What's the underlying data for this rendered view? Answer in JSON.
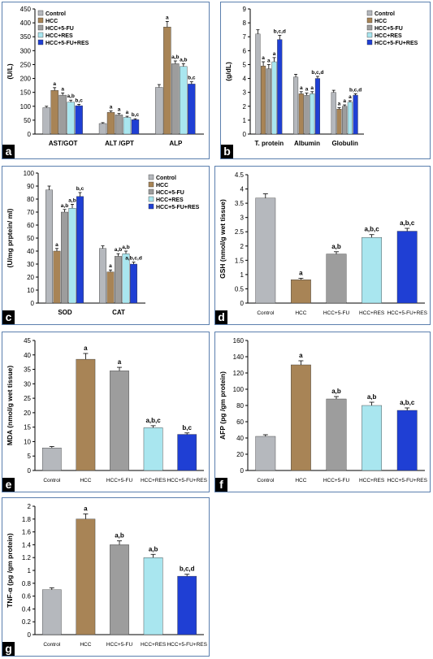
{
  "colors": {
    "Control": "#b5b8bd",
    "HCC": "#a88456",
    "HCC+5-FU": "#9d9d9d",
    "HCC+RES": "#a9e6ef",
    "HCC+5-FU+RES": "#1f3fd4",
    "axis": "#000000",
    "panel_border": "#5b7fae"
  },
  "chart_data": [
    {
      "panel": "a",
      "type": "bar",
      "ylabel": "(U/L)",
      "ylim": [
        0,
        450
      ],
      "yticks": [
        0,
        50,
        100,
        150,
        200,
        250,
        300,
        350,
        400,
        450
      ],
      "legend": "top-left",
      "legend_labels": [
        "Control",
        "HCC",
        "HCC+5-FU",
        "HCC+RES",
        "HCC+5-FU+RES"
      ],
      "categories": [
        "AST/GOT",
        "ALT /GPT",
        "ALP"
      ],
      "series": [
        {
          "name": "Control",
          "values": [
            95,
            38,
            168
          ],
          "errors": [
            5,
            3,
            10
          ],
          "labels": [
            "",
            "",
            ""
          ]
        },
        {
          "name": "HCC",
          "values": [
            157,
            78,
            385
          ],
          "errors": [
            10,
            5,
            20
          ],
          "labels": [
            "a",
            "a",
            "a"
          ]
        },
        {
          "name": "HCC+5-FU",
          "values": [
            140,
            69,
            253
          ],
          "errors": [
            8,
            5,
            10
          ],
          "labels": [
            "a",
            "a",
            "a,b"
          ]
        },
        {
          "name": "HCC+RES",
          "values": [
            115,
            60,
            243
          ],
          "errors": [
            7,
            4,
            10
          ],
          "labels": [
            "a,b",
            "a",
            "a,b"
          ]
        },
        {
          "name": "HCC+5-FU+RES",
          "values": [
            102,
            52,
            180
          ],
          "errors": [
            5,
            3,
            8
          ],
          "labels": [
            "b,c",
            "b,c",
            "b,c"
          ]
        }
      ]
    },
    {
      "panel": "b",
      "type": "bar",
      "ylabel": "(g/dL)",
      "ylim": [
        0,
        9
      ],
      "yticks": [
        0,
        1,
        2,
        3,
        4,
        5,
        6,
        7,
        8,
        9
      ],
      "legend": "top-right",
      "legend_labels": [
        "Control",
        "HCC",
        "HCC+5-FU",
        "HCC+RES",
        "HCC+5-FU+RES"
      ],
      "categories": [
        "T. protein",
        "Albumin",
        "Globulin"
      ],
      "series": [
        {
          "name": "Control",
          "values": [
            7.2,
            4.1,
            3.0
          ],
          "errors": [
            0.3,
            0.2,
            0.15
          ],
          "labels": [
            "",
            "",
            ""
          ]
        },
        {
          "name": "HCC",
          "values": [
            4.9,
            2.9,
            1.8
          ],
          "errors": [
            0.3,
            0.15,
            0.1
          ],
          "labels": [
            "a",
            "a",
            "a"
          ]
        },
        {
          "name": "HCC+5-FU",
          "values": [
            4.7,
            2.8,
            2.0
          ],
          "errors": [
            0.3,
            0.15,
            0.1
          ],
          "labels": [
            "a",
            "a",
            "a"
          ]
        },
        {
          "name": "HCC+RES",
          "values": [
            5.2,
            2.9,
            2.3
          ],
          "errors": [
            0.3,
            0.15,
            0.1
          ],
          "labels": [
            "a",
            "a",
            "a"
          ]
        },
        {
          "name": "HCC+5-FU+RES",
          "values": [
            6.8,
            4.0,
            2.8
          ],
          "errors": [
            0.3,
            0.15,
            0.1
          ],
          "labels": [
            "b,c,d",
            "b,c,d",
            "b,c,d"
          ]
        }
      ]
    },
    {
      "panel": "c",
      "type": "bar",
      "ylabel": "(U/mg prptein/ ml)",
      "ylim": [
        0,
        100
      ],
      "yticks": [
        0,
        10,
        20,
        30,
        40,
        50,
        60,
        70,
        80,
        90,
        100
      ],
      "legend": "top-right",
      "legend_labels": [
        "Control",
        "HCC",
        "HCC+5-FU",
        "HCC+RES",
        "HCC+5-FU+RES"
      ],
      "categories": [
        "SOD",
        "CAT"
      ],
      "series": [
        {
          "name": "Control",
          "values": [
            87,
            42
          ],
          "errors": [
            3,
            2
          ],
          "labels": [
            "",
            ""
          ]
        },
        {
          "name": "HCC",
          "values": [
            40,
            24
          ],
          "errors": [
            2,
            1.5
          ],
          "labels": [
            "a",
            "a"
          ]
        },
        {
          "name": "HCC+5-FU",
          "values": [
            70,
            36
          ],
          "errors": [
            2,
            2
          ],
          "labels": [
            "a,b",
            "a,b"
          ]
        },
        {
          "name": "HCC+RES",
          "values": [
            73,
            38
          ],
          "errors": [
            3,
            2
          ],
          "labels": [
            "a,b",
            "a,b"
          ]
        },
        {
          "name": "HCC+5-FU+RES",
          "values": [
            82,
            30
          ],
          "errors": [
            3,
            1.5
          ],
          "labels": [
            "b,c",
            "a,b,c,d"
          ]
        }
      ]
    },
    {
      "panel": "d",
      "type": "bar",
      "ylabel": "GSH (nmol/g wet tissue)",
      "ylim": [
        0,
        4.5
      ],
      "yticks": [
        0,
        0.5,
        1,
        1.5,
        2,
        2.5,
        3,
        3.5,
        4,
        4.5
      ],
      "categories": [
        "Control",
        "HCC",
        "HCC+5-FU",
        "HCC+RES",
        "HCC+5-FU+RES"
      ],
      "values": [
        3.68,
        0.82,
        1.72,
        2.3,
        2.52
      ],
      "errors": [
        0.15,
        0.05,
        0.08,
        0.1,
        0.1
      ],
      "labels": [
        "",
        "a",
        "a,b",
        "a,b,c",
        "a,b,c"
      ]
    },
    {
      "panel": "e",
      "type": "bar",
      "ylabel": "MDA (nmol/g wet tissue)",
      "ylim": [
        0,
        45
      ],
      "yticks": [
        0,
        5,
        10,
        15,
        20,
        25,
        30,
        35,
        40,
        45
      ],
      "categories": [
        "Control",
        "HCC",
        "HCC+5-FU",
        "HCC+RES",
        "HCC+5-FU+RES"
      ],
      "values": [
        7.8,
        38.5,
        34.5,
        14.8,
        12.5
      ],
      "errors": [
        0.5,
        2,
        1.2,
        0.7,
        0.5
      ],
      "labels": [
        "",
        "a",
        "a",
        "a,b,c",
        "b,c"
      ]
    },
    {
      "panel": "f",
      "type": "bar",
      "ylabel": "AFP (pg /gm protein)",
      "ylim": [
        0,
        160
      ],
      "yticks": [
        0,
        20,
        40,
        60,
        80,
        100,
        120,
        140,
        160
      ],
      "categories": [
        "Control",
        "HCC",
        "HCC+5-FU",
        "HCC+RES",
        "HCC+5-FU+RES"
      ],
      "values": [
        42,
        130,
        88,
        80,
        74
      ],
      "errors": [
        2,
        5,
        3,
        4,
        3
      ],
      "labels": [
        "",
        "a",
        "a,b",
        "a,b",
        "a,b,c"
      ]
    },
    {
      "panel": "g",
      "type": "bar",
      "ylabel": "TNF-α (pg /gm protein)",
      "ylim": [
        0,
        2
      ],
      "yticks": [
        0,
        0.2,
        0.4,
        0.6,
        0.8,
        1,
        1.2,
        1.4,
        1.6,
        1.8,
        2
      ],
      "categories": [
        "Control",
        "HCC",
        "HCC+5-FU",
        "HCC+RES",
        "HCC+5-FU+RES"
      ],
      "values": [
        0.7,
        1.8,
        1.4,
        1.2,
        0.91
      ],
      "errors": [
        0.03,
        0.08,
        0.06,
        0.05,
        0.03
      ],
      "labels": [
        "",
        "a",
        "a,b",
        "a,b",
        "b,c,d"
      ]
    }
  ]
}
